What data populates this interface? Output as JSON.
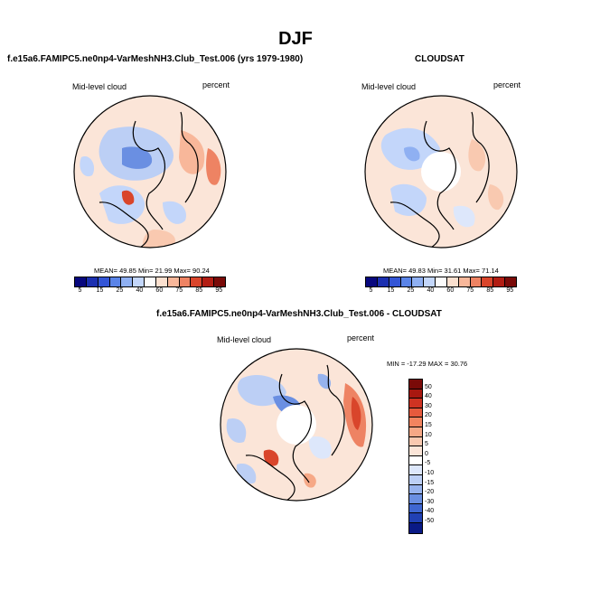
{
  "title": "DJF",
  "panels": [
    {
      "title": "f.e15a6.FAMIPC5.ne0np4-VarMeshNH3.Club_Test.006 (yrs 1979-1980)",
      "left_label": "Mid-level cloud",
      "right_label": "percent",
      "stats": "MEAN=  49.85  Min=  21.99  Max=  90.24",
      "has_hole": false
    },
    {
      "title": "CLOUDSAT",
      "left_label": "Mid-level cloud",
      "right_label": "percent",
      "stats": "MEAN=  49.83  Min=  31.61  Max=  71.14",
      "has_hole": true
    },
    {
      "title": "f.e15a6.FAMIPC5.ne0np4-VarMeshNH3.Club_Test.006 - CLOUDSAT",
      "left_label": "Mid-level cloud",
      "right_label": "percent",
      "stats": "MIN = -17.29 MAX = 30.76",
      "has_hole": true
    }
  ],
  "colorbar_abs": {
    "labels": [
      "5",
      "15",
      "25",
      "40",
      "60",
      "75",
      "85",
      "95"
    ],
    "colors": [
      "#08087e",
      "#1b2fb0",
      "#3355d6",
      "#5a84e8",
      "#8fb0f2",
      "#c3d6fa",
      "#fbfbfb",
      "#fbe0cf",
      "#f8b79a",
      "#ee8363",
      "#d9452b",
      "#b21d13",
      "#7a0a08"
    ]
  },
  "colorbar_diff": {
    "labels": [
      "50",
      "40",
      "30",
      "20",
      "15",
      "10",
      "5",
      "0",
      "-5",
      "-10",
      "-15",
      "-20",
      "-30",
      "-40",
      "-50"
    ],
    "colors": [
      "#7a0a08",
      "#a81810",
      "#cf3322",
      "#e65a3d",
      "#f2845f",
      "#f6a886",
      "#f9c9b0",
      "#fbe5d8",
      "#ffffff",
      "#dde7fb",
      "#bccff5",
      "#97b3ee",
      "#6a8fe2",
      "#3f67d2",
      "#2141b4",
      "#0a1a86"
    ]
  }
}
